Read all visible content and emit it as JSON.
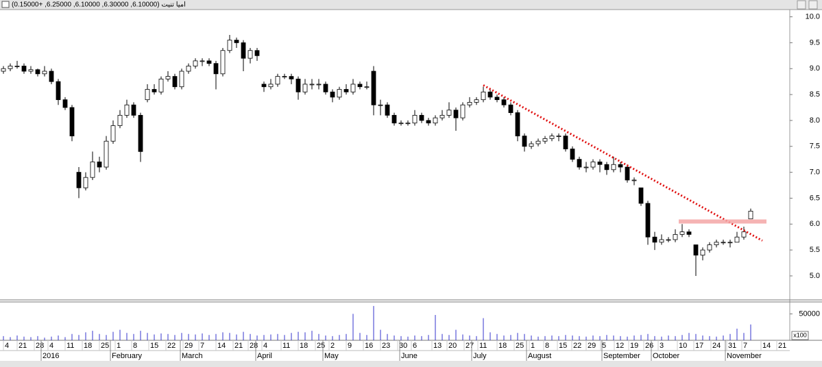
{
  "chart_data": {
    "type": "candlestick",
    "title": "اميا تنيت (6.10000, 6.30000, 6.10000, 6.25000, +0.15000)",
    "open": [
      8.95,
      9.0,
      9.05,
      9.05,
      8.95,
      8.98,
      8.9,
      8.95,
      8.75,
      8.4,
      8.25,
      7.0,
      6.7,
      6.9,
      7.2,
      7.1,
      7.6,
      7.9,
      8.1,
      8.3,
      8.1,
      8.4,
      8.6,
      8.55,
      8.8,
      8.85,
      8.65,
      8.95,
      9.05,
      9.15,
      9.15,
      9.1,
      8.9,
      9.35,
      9.55,
      9.5,
      9.2,
      9.35,
      8.7,
      8.65,
      8.7,
      8.85,
      8.85,
      8.8,
      8.55,
      8.7,
      8.7,
      8.7,
      8.55,
      8.45,
      8.6,
      8.55,
      8.7,
      8.65,
      8.95,
      8.3,
      8.3,
      8.1,
      7.95,
      7.95,
      7.95,
      8.1,
      8.0,
      7.95,
      8.05,
      8.1,
      8.2,
      8.05,
      8.3,
      8.35,
      8.4,
      8.55,
      8.45,
      8.4,
      8.3,
      8.15,
      7.7,
      7.5,
      7.55,
      7.6,
      7.65,
      7.7,
      7.7,
      7.45,
      7.25,
      7.1,
      7.1,
      7.2,
      7.15,
      7.05,
      7.15,
      7.1,
      6.85,
      6.7,
      6.4,
      5.75,
      5.65,
      5.7,
      5.7,
      5.8,
      5.85,
      5.6,
      5.4,
      5.5,
      5.6,
      5.65,
      5.65,
      5.65,
      5.75,
      6.1
    ],
    "high": [
      9.05,
      9.1,
      9.15,
      9.1,
      9.05,
      9.0,
      9.05,
      9.0,
      8.8,
      8.45,
      8.3,
      7.1,
      7.0,
      7.4,
      7.3,
      7.7,
      8.0,
      8.2,
      8.4,
      8.35,
      8.15,
      8.7,
      8.7,
      8.85,
      8.95,
      8.9,
      9.0,
      9.1,
      9.2,
      9.2,
      9.2,
      9.15,
      9.4,
      9.65,
      9.6,
      9.55,
      9.4,
      9.4,
      8.75,
      8.8,
      8.9,
      8.9,
      8.9,
      8.85,
      8.8,
      8.8,
      8.8,
      8.75,
      8.6,
      8.65,
      8.7,
      8.8,
      8.75,
      8.75,
      9.05,
      8.4,
      8.35,
      8.15,
      8.0,
      8.0,
      8.2,
      8.15,
      8.05,
      8.1,
      8.2,
      8.35,
      8.25,
      8.35,
      8.45,
      8.45,
      8.65,
      8.6,
      8.5,
      8.45,
      8.35,
      8.2,
      7.75,
      7.6,
      7.65,
      7.7,
      7.75,
      7.75,
      7.75,
      7.5,
      7.3,
      7.2,
      7.25,
      7.25,
      7.2,
      7.3,
      7.2,
      7.15,
      6.9,
      6.7,
      6.45,
      5.85,
      5.8,
      5.75,
      5.9,
      6.0,
      5.9,
      5.6,
      5.55,
      5.65,
      5.7,
      5.7,
      5.7,
      5.85,
      5.95,
      6.3
    ],
    "low": [
      8.9,
      8.95,
      9.0,
      8.9,
      8.9,
      8.85,
      8.85,
      8.7,
      8.3,
      8.2,
      7.6,
      6.5,
      6.65,
      6.85,
      7.0,
      7.05,
      7.55,
      7.85,
      8.05,
      8.05,
      7.2,
      8.35,
      8.5,
      8.5,
      8.75,
      8.6,
      8.6,
      8.9,
      9.0,
      9.05,
      9.05,
      8.6,
      8.85,
      9.3,
      9.4,
      8.95,
      9.1,
      9.15,
      8.55,
      8.6,
      8.65,
      8.8,
      8.7,
      8.4,
      8.5,
      8.6,
      8.6,
      8.5,
      8.35,
      8.4,
      8.5,
      8.5,
      8.6,
      8.6,
      8.1,
      8.1,
      8.05,
      7.9,
      7.9,
      7.9,
      7.9,
      7.95,
      7.9,
      7.9,
      8.0,
      8.05,
      7.8,
      8.0,
      8.25,
      8.3,
      8.35,
      8.4,
      8.35,
      8.25,
      8.1,
      7.6,
      7.4,
      7.45,
      7.5,
      7.55,
      7.6,
      7.6,
      7.4,
      7.2,
      7.05,
      7.0,
      7.05,
      7.0,
      6.95,
      7.0,
      7.0,
      6.8,
      6.75,
      6.35,
      5.6,
      5.5,
      5.6,
      5.65,
      5.65,
      5.75,
      5.75,
      5.0,
      5.3,
      5.45,
      5.55,
      5.6,
      5.55,
      5.65,
      5.7,
      6.1
    ],
    "close": [
      9.0,
      9.05,
      9.05,
      8.95,
      8.98,
      8.9,
      8.95,
      8.75,
      8.4,
      8.25,
      7.7,
      6.7,
      6.9,
      7.2,
      7.1,
      7.6,
      7.9,
      8.1,
      8.3,
      8.1,
      7.4,
      8.6,
      8.55,
      8.8,
      8.85,
      8.65,
      8.95,
      9.05,
      9.15,
      9.15,
      9.1,
      8.9,
      9.35,
      9.55,
      9.5,
      9.2,
      9.35,
      9.25,
      8.65,
      8.7,
      8.85,
      8.85,
      8.8,
      8.55,
      8.7,
      8.7,
      8.7,
      8.55,
      8.45,
      8.6,
      8.55,
      8.7,
      8.65,
      8.65,
      8.3,
      8.3,
      8.1,
      7.95,
      7.95,
      7.95,
      8.1,
      8.0,
      7.95,
      8.05,
      8.1,
      8.2,
      8.05,
      8.3,
      8.35,
      8.4,
      8.55,
      8.45,
      8.4,
      8.3,
      8.15,
      7.7,
      7.5,
      7.55,
      7.6,
      7.65,
      7.7,
      7.7,
      7.45,
      7.25,
      7.1,
      7.1,
      7.2,
      7.15,
      7.05,
      7.15,
      7.1,
      6.85,
      6.85,
      6.4,
      5.75,
      5.65,
      5.7,
      5.7,
      5.8,
      5.85,
      5.8,
      5.4,
      5.5,
      5.6,
      5.65,
      5.65,
      5.65,
      5.75,
      5.85,
      6.25
    ],
    "volume": [
      8000,
      6000,
      9000,
      7000,
      6000,
      8000,
      5000,
      7000,
      9000,
      6000,
      12000,
      10000,
      15000,
      18000,
      12000,
      10000,
      16000,
      20000,
      14000,
      12000,
      18000,
      14000,
      11000,
      13000,
      12000,
      10000,
      14000,
      12000,
      11000,
      13000,
      10000,
      12000,
      15000,
      14000,
      11000,
      16000,
      12000,
      9000,
      10000,
      11000,
      12000,
      10000,
      14000,
      16000,
      15000,
      18000,
      12000,
      9000,
      8000,
      10000,
      12000,
      50000,
      14000,
      10000,
      65000,
      20000,
      12000,
      9000,
      8000,
      7000,
      9000,
      8000,
      10000,
      48000,
      12000,
      10000,
      20000,
      11000,
      9000,
      8000,
      42000,
      15000,
      12000,
      9000,
      10000,
      14000,
      12000,
      9000,
      7000,
      8000,
      9000,
      8000,
      10000,
      9000,
      8000,
      7000,
      9000,
      8000,
      10000,
      9000,
      8000,
      7000,
      9000,
      10000,
      12000,
      8000,
      7000,
      9000,
      8000,
      10000,
      14000,
      12000,
      9000,
      8000,
      7000,
      9000,
      12000,
      22000,
      14000,
      30000
    ],
    "up_color": "#ffffff",
    "down_color": "#000000",
    "volume_color": "#3333cc",
    "xlim": [
      -0.5,
      114.5
    ],
    "ylim": [
      4.55,
      10.1
    ],
    "yticks": [
      {
        "value": 10,
        "label": "10.0"
      },
      {
        "value": 9.5,
        "label": "9.5"
      },
      {
        "value": 9,
        "label": "9.0"
      },
      {
        "value": 8.5,
        "label": "8.5"
      },
      {
        "value": 8,
        "label": "8.0"
      },
      {
        "value": 7.5,
        "label": "7.5"
      },
      {
        "value": 7,
        "label": "7.0"
      },
      {
        "value": 6.5,
        "label": "6.5"
      },
      {
        "value": 6,
        "label": "6.0"
      },
      {
        "value": 5.5,
        "label": "5.5"
      },
      {
        "value": 5,
        "label": "5.0"
      }
    ],
    "y2lim": [
      0,
      70000
    ],
    "y2ticks": [
      50000
    ],
    "y2_unit": "x100",
    "xticks": [
      {
        "value": 0,
        "label": "4"
      },
      {
        "value": 2,
        "label": "21"
      },
      {
        "value": 4.5,
        "label": "28"
      },
      {
        "value": 6.5,
        "label": "4"
      },
      {
        "value": 9,
        "label": "11"
      },
      {
        "value": 11.5,
        "label": "18"
      },
      {
        "value": 14,
        "label": "25"
      },
      {
        "value": 16.3,
        "label": "1"
      },
      {
        "value": 18.7,
        "label": "8"
      },
      {
        "value": 21.2,
        "label": "15"
      },
      {
        "value": 23.7,
        "label": "22"
      },
      {
        "value": 26.2,
        "label": "29"
      },
      {
        "value": 28.5,
        "label": "7"
      },
      {
        "value": 31,
        "label": "14"
      },
      {
        "value": 33.5,
        "label": "21"
      },
      {
        "value": 35.7,
        "label": "28"
      },
      {
        "value": 37.7,
        "label": "4"
      },
      {
        "value": 40.5,
        "label": "11"
      },
      {
        "value": 43,
        "label": "18"
      },
      {
        "value": 45.5,
        "label": "25"
      },
      {
        "value": 47.5,
        "label": "2"
      },
      {
        "value": 50,
        "label": "9"
      },
      {
        "value": 52.5,
        "label": "16"
      },
      {
        "value": 55,
        "label": "23"
      },
      {
        "value": 57.5,
        "label": "30"
      },
      {
        "value": 59.5,
        "label": "6"
      },
      {
        "value": 62.5,
        "label": "13"
      },
      {
        "value": 64.7,
        "label": "20"
      },
      {
        "value": 67.2,
        "label": "27"
      },
      {
        "value": 69.2,
        "label": "11"
      },
      {
        "value": 72,
        "label": "18"
      },
      {
        "value": 74.5,
        "label": "25"
      },
      {
        "value": 76.7,
        "label": "1"
      },
      {
        "value": 78.8,
        "label": "8"
      },
      {
        "value": 80.8,
        "label": "15"
      },
      {
        "value": 82.9,
        "label": "22"
      },
      {
        "value": 85,
        "label": "29"
      },
      {
        "value": 87.1,
        "label": "5"
      },
      {
        "value": 89.1,
        "label": "12"
      },
      {
        "value": 91.2,
        "label": "19"
      },
      {
        "value": 93.4,
        "label": "26"
      },
      {
        "value": 95.5,
        "label": "3"
      },
      {
        "value": 98.3,
        "label": "10"
      },
      {
        "value": 100.7,
        "label": "17"
      },
      {
        "value": 103.2,
        "label": "24"
      },
      {
        "value": 105.5,
        "label": "31"
      },
      {
        "value": 107.7,
        "label": "7"
      },
      {
        "value": 110.5,
        "label": "14"
      },
      {
        "value": 112.8,
        "label": "21"
      }
    ],
    "month_ticks": [
      {
        "value": 5.5,
        "label": "2016"
      },
      {
        "value": 15.6,
        "label": "February"
      },
      {
        "value": 25.8,
        "label": "March"
      },
      {
        "value": 36.8,
        "label": "April"
      },
      {
        "value": 46.6,
        "label": "May"
      },
      {
        "value": 57.8,
        "label": "June"
      },
      {
        "value": 68.3,
        "label": "July"
      },
      {
        "value": 76.3,
        "label": "August"
      },
      {
        "value": 87.3,
        "label": "September"
      },
      {
        "value": 94.5,
        "label": "October"
      },
      {
        "value": 105.3,
        "label": "November"
      }
    ],
    "trendline": {
      "x": [
        70,
        110.7
      ],
      "y": [
        8.68,
        5.68
      ],
      "color": "#e01010"
    },
    "level": {
      "x": [
        98.5,
        111.3
      ],
      "y": 6.05,
      "color": "#f4a6a6"
    }
  }
}
